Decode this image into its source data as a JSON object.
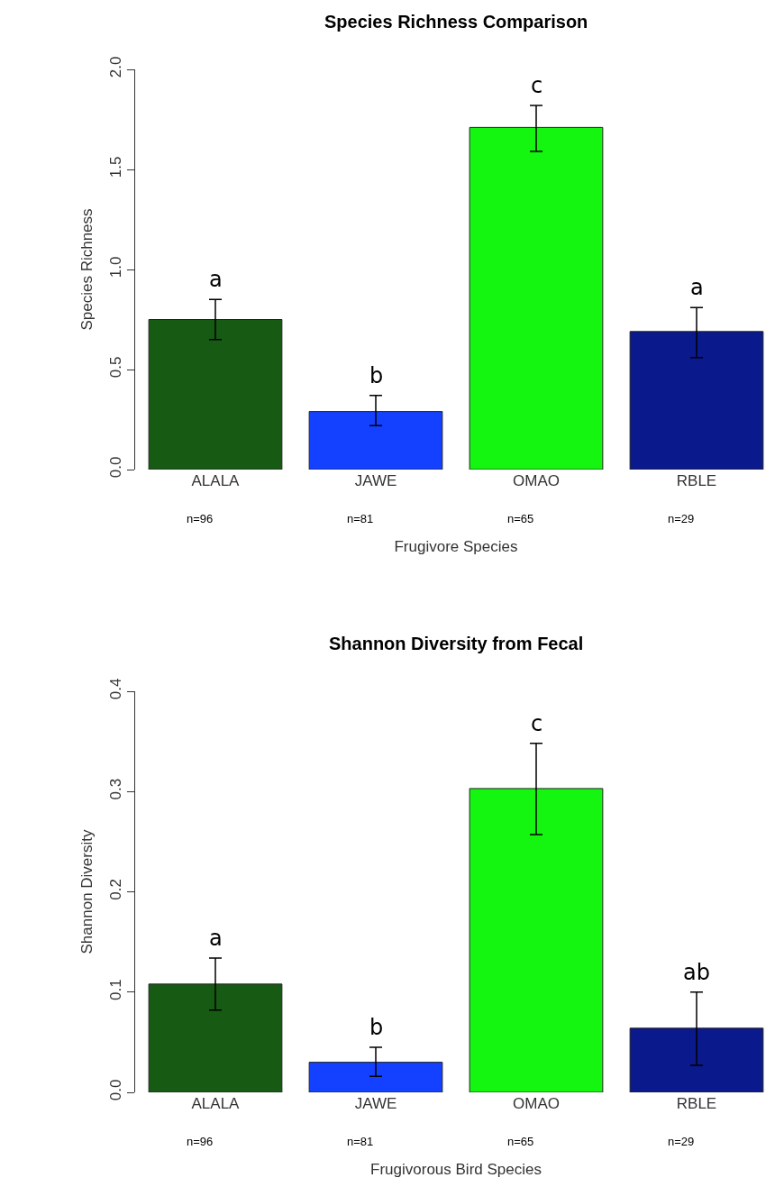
{
  "chart_data": [
    {
      "type": "bar",
      "title": "Species Richness Comparison",
      "xlabel": "Frugivore Species",
      "ylabel": "Species Richness",
      "categories": [
        "ALALA",
        "JAWE",
        "OMAO",
        "RBLE"
      ],
      "values": [
        0.75,
        0.29,
        1.71,
        0.69
      ],
      "colors": [
        "#165a14",
        "#1440ff",
        "#14f50f",
        "#0a1a8c"
      ],
      "errors": [
        [
          0.65,
          0.85
        ],
        [
          0.22,
          0.37
        ],
        [
          1.59,
          1.82
        ],
        [
          0.56,
          0.81
        ]
      ],
      "ylim": [
        0,
        2.0
      ],
      "yticks": [
        {
          "value": 0,
          "label": "0.0"
        },
        0.5,
        {
          "value": 1,
          "label": "1.0"
        },
        1.5,
        {
          "value": 2,
          "label": "2.0"
        }
      ],
      "annotations": [
        "a",
        "b",
        "c",
        "a",
        "n=96",
        "n=81",
        "n=65",
        "n=29"
      ]
    },
    {
      "type": "bar",
      "title": "Shannon Diversity from Fecal",
      "xlabel": "Frugivorous Bird Species",
      "ylabel": "Shannon Diversity",
      "categories": [
        "ALALA",
        "JAWE",
        "OMAO",
        "RBLE"
      ],
      "values": [
        0.108,
        0.03,
        0.303,
        0.064
      ],
      "colors": [
        "#165a14",
        "#1440ff",
        "#14f50f",
        "#0a1a8c"
      ],
      "errors": [
        [
          0.082,
          0.134
        ],
        [
          0.016,
          0.045
        ],
        [
          0.257,
          0.348
        ],
        [
          0.027,
          0.1
        ]
      ],
      "ylim": [
        0,
        0.4
      ],
      "yticks": [
        {
          "value": 0,
          "label": "0.0"
        },
        0.1,
        0.2,
        0.3,
        0.4
      ],
      "annotations": [
        "a",
        "b",
        "c",
        "ab",
        "n=96",
        "n=81",
        "n=65",
        "n=29"
      ]
    }
  ]
}
